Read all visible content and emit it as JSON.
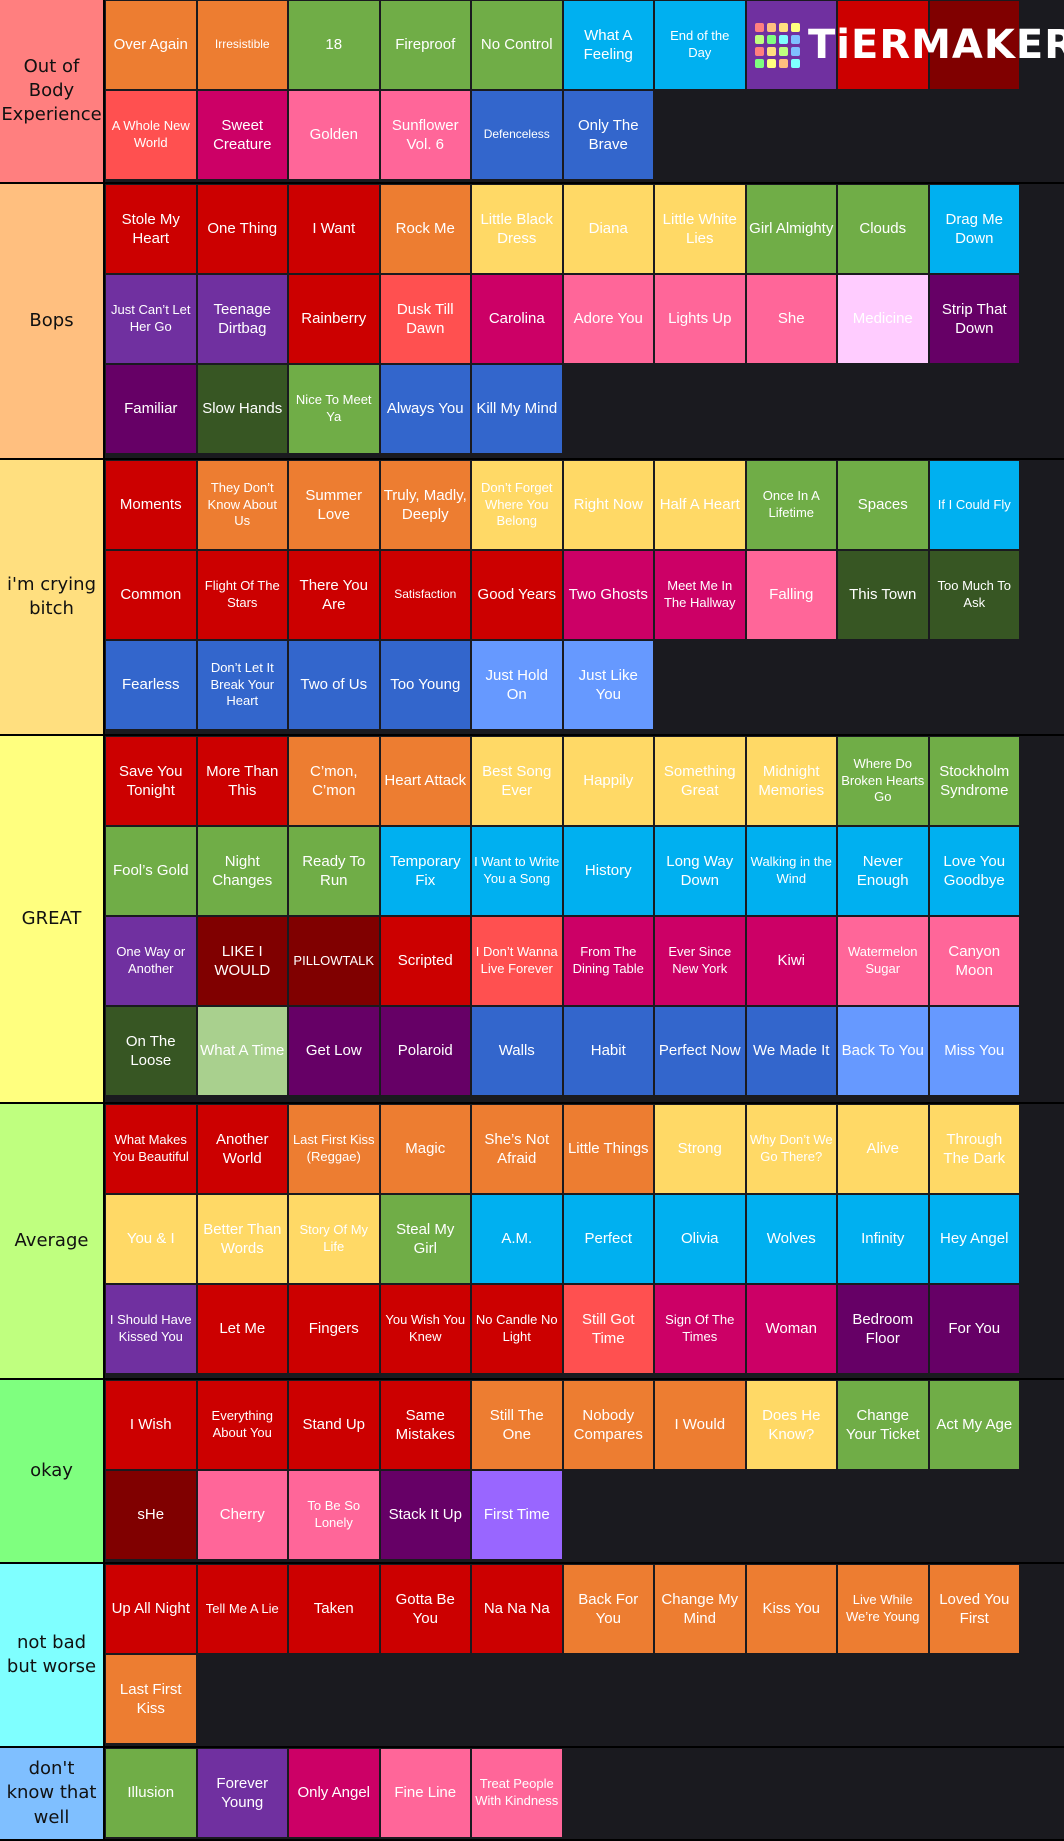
{
  "watermark": "TiERMAKER",
  "tiers": [
    {
      "label": "Out of Body Experience",
      "color": "#ff7f7f",
      "items": [
        {
          "text": "Over Again",
          "color": "#ed7d31"
        },
        {
          "text": "Irresistible",
          "color": "#ed7d31"
        },
        {
          "text": "18",
          "color": "#70ad47"
        },
        {
          "text": "Fireproof",
          "color": "#70ad47"
        },
        {
          "text": "No Control",
          "color": "#70ad47"
        },
        {
          "text": "What A Feeling",
          "color": "#00b0f0"
        },
        {
          "text": "End of the Day",
          "color": "#00b0f0"
        },
        {
          "color": "#7030a0"
        },
        {
          "color": "#cc0000"
        },
        {
          "color": "#800000"
        },
        {
          "text": "A Whole New World",
          "color": "#ff5050"
        },
        {
          "text": "Sweet Creature",
          "color": "#cc0066"
        },
        {
          "text": "Golden",
          "color": "#ff6699"
        },
        {
          "text": "Sunflower Vol. 6",
          "color": "#ff6699"
        },
        {
          "text": "Defenceless",
          "color": "#3366cc"
        },
        {
          "text": "Only The Brave",
          "color": "#3366cc"
        }
      ]
    },
    {
      "label": "Bops",
      "color": "#ffbf7f",
      "items": [
        {
          "text": "Stole My Heart",
          "color": "#cc0000"
        },
        {
          "text": "One Thing",
          "color": "#cc0000"
        },
        {
          "text": "I Want",
          "color": "#cc0000"
        },
        {
          "text": "Rock Me",
          "color": "#ed7d31"
        },
        {
          "text": "Little Black Dress",
          "color": "#ffd966"
        },
        {
          "text": "Diana",
          "color": "#ffd966"
        },
        {
          "text": "Little White Lies",
          "color": "#ffd966"
        },
        {
          "text": "Girl Almighty",
          "color": "#70ad47"
        },
        {
          "text": "Clouds",
          "color": "#70ad47"
        },
        {
          "text": "Drag Me Down",
          "color": "#00b0f0"
        },
        {
          "text": "Just Can’t Let Her Go",
          "color": "#7030a0"
        },
        {
          "text": "Teenage Dirtbag",
          "color": "#7030a0"
        },
        {
          "text": "Rainberry",
          "color": "#cc0000"
        },
        {
          "text": "Dusk Till Dawn",
          "color": "#ff5050"
        },
        {
          "text": "Carolina",
          "color": "#cc0066"
        },
        {
          "text": "Adore You",
          "color": "#ff6699"
        },
        {
          "text": "Lights Up",
          "color": "#ff6699"
        },
        {
          "text": "She",
          "color": "#ff6699"
        },
        {
          "text": "Medicine",
          "color": "#ffccff"
        },
        {
          "text": "Strip That Down",
          "color": "#660066"
        },
        {
          "text": "Familiar",
          "color": "#660066"
        },
        {
          "text": "Slow Hands",
          "color": "#375623"
        },
        {
          "text": "Nice To Meet Ya",
          "color": "#70ad47"
        },
        {
          "text": "Always You",
          "color": "#3366cc"
        },
        {
          "text": "Kill My Mind",
          "color": "#3366cc"
        }
      ]
    },
    {
      "label": "i'm crying bitch",
      "color": "#ffdf7f",
      "items": [
        {
          "text": "Moments",
          "color": "#cc0000"
        },
        {
          "text": "They Don’t Know About Us",
          "color": "#ed7d31"
        },
        {
          "text": "Summer Love",
          "color": "#ed7d31"
        },
        {
          "text": "Truly, Madly, Deeply",
          "color": "#ed7d31"
        },
        {
          "text": "Don’t Forget Where You Belong",
          "color": "#ffd966"
        },
        {
          "text": "Right Now",
          "color": "#ffd966"
        },
        {
          "text": "Half A Heart",
          "color": "#ffd966"
        },
        {
          "text": "Once In A Lifetime",
          "color": "#70ad47"
        },
        {
          "text": "Spaces",
          "color": "#70ad47"
        },
        {
          "text": "If I Could Fly",
          "color": "#00b0f0"
        },
        {
          "text": "Common",
          "color": "#cc0000"
        },
        {
          "text": "Flight Of The Stars",
          "color": "#cc0000"
        },
        {
          "text": "There You Are",
          "color": "#cc0000"
        },
        {
          "text": "Satisfaction",
          "color": "#cc0000"
        },
        {
          "text": "Good Years",
          "color": "#cc0000"
        },
        {
          "text": "Two Ghosts",
          "color": "#cc0066"
        },
        {
          "text": "Meet Me In The Hallway",
          "color": "#cc0066"
        },
        {
          "text": "Falling",
          "color": "#ff6699"
        },
        {
          "text": "This Town",
          "color": "#375623"
        },
        {
          "text": "Too Much To Ask",
          "color": "#375623"
        },
        {
          "text": "Fearless",
          "color": "#3366cc"
        },
        {
          "text": "Don’t Let It Break Your Heart",
          "color": "#3366cc"
        },
        {
          "text": "Two of Us",
          "color": "#3366cc"
        },
        {
          "text": "Too Young",
          "color": "#3366cc"
        },
        {
          "text": "Just Hold On",
          "color": "#6699ff"
        },
        {
          "text": "Just Like You",
          "color": "#6699ff"
        }
      ]
    },
    {
      "label": "GREAT",
      "color": "#ffff7f",
      "items": [
        {
          "text": "Save You Tonight",
          "color": "#cc0000"
        },
        {
          "text": "More Than This",
          "color": "#cc0000"
        },
        {
          "text": "C’mon, C’mon",
          "color": "#ed7d31"
        },
        {
          "text": "Heart Attack",
          "color": "#ed7d31"
        },
        {
          "text": "Best Song Ever",
          "color": "#ffd966"
        },
        {
          "text": "Happily",
          "color": "#ffd966"
        },
        {
          "text": "Something Great",
          "color": "#ffd966"
        },
        {
          "text": "Midnight Memories",
          "color": "#ffd966"
        },
        {
          "text": "Where Do Broken Hearts Go",
          "color": "#70ad47"
        },
        {
          "text": "Stockholm Syndrome",
          "color": "#70ad47"
        },
        {
          "text": "Fool’s Gold",
          "color": "#70ad47"
        },
        {
          "text": "Night Changes",
          "color": "#70ad47"
        },
        {
          "text": "Ready To Run",
          "color": "#70ad47"
        },
        {
          "text": "Temporary Fix",
          "color": "#00b0f0"
        },
        {
          "text": "I Want to Write You a Song",
          "color": "#00b0f0"
        },
        {
          "text": "History",
          "color": "#00b0f0"
        },
        {
          "text": "Long Way Down",
          "color": "#00b0f0"
        },
        {
          "text": "Walking in the Wind",
          "color": "#00b0f0"
        },
        {
          "text": "Never Enough",
          "color": "#00b0f0"
        },
        {
          "text": "Love You Goodbye",
          "color": "#00b0f0"
        },
        {
          "text": "One Way or Another",
          "color": "#7030a0"
        },
        {
          "text": "LIKE I WOULD",
          "color": "#800000"
        },
        {
          "text": "PILLOWTALK",
          "color": "#800000"
        },
        {
          "text": "Scripted",
          "color": "#cc0000"
        },
        {
          "text": "I Don’t Wanna Live Forever",
          "color": "#ff5050"
        },
        {
          "text": "From The Dining Table",
          "color": "#cc0066"
        },
        {
          "text": "Ever Since New York",
          "color": "#cc0066"
        },
        {
          "text": "Kiwi",
          "color": "#cc0066"
        },
        {
          "text": "Watermelon Sugar",
          "color": "#ff6699"
        },
        {
          "text": "Canyon Moon",
          "color": "#ff6699"
        },
        {
          "text": "On The Loose",
          "color": "#375623"
        },
        {
          "text": "What A Time",
          "color": "#a9d08e"
        },
        {
          "text": "Get Low",
          "color": "#660066"
        },
        {
          "text": "Polaroid",
          "color": "#660066"
        },
        {
          "text": "Walls",
          "color": "#3366cc"
        },
        {
          "text": "Habit",
          "color": "#3366cc"
        },
        {
          "text": "Perfect Now",
          "color": "#3366cc"
        },
        {
          "text": "We Made It",
          "color": "#3366cc"
        },
        {
          "text": "Back To You",
          "color": "#6699ff"
        },
        {
          "text": "Miss You",
          "color": "#6699ff"
        }
      ]
    },
    {
      "label": "Average",
      "color": "#bfff7f",
      "items": [
        {
          "text": "What Makes You Beautiful",
          "color": "#cc0000"
        },
        {
          "text": "Another World",
          "color": "#cc0000"
        },
        {
          "text": "Last First Kiss (Reggae)",
          "color": "#ed7d31"
        },
        {
          "text": "Magic",
          "color": "#ed7d31"
        },
        {
          "text": "She’s Not Afraid",
          "color": "#ed7d31"
        },
        {
          "text": "Little Things",
          "color": "#ed7d31"
        },
        {
          "text": "Strong",
          "color": "#ffd966"
        },
        {
          "text": "Why Don’t We Go There?",
          "color": "#ffd966"
        },
        {
          "text": "Alive",
          "color": "#ffd966"
        },
        {
          "text": "Through The Dark",
          "color": "#ffd966"
        },
        {
          "text": "You & I",
          "color": "#ffd966"
        },
        {
          "text": "Better Than Words",
          "color": "#ffd966"
        },
        {
          "text": "Story Of My Life",
          "color": "#ffd966"
        },
        {
          "text": "Steal My Girl",
          "color": "#70ad47"
        },
        {
          "text": "A.M.",
          "color": "#00b0f0"
        },
        {
          "text": "Perfect",
          "color": "#00b0f0"
        },
        {
          "text": "Olivia",
          "color": "#00b0f0"
        },
        {
          "text": "Wolves",
          "color": "#00b0f0"
        },
        {
          "text": "Infinity",
          "color": "#00b0f0"
        },
        {
          "text": "Hey Angel",
          "color": "#00b0f0"
        },
        {
          "text": "I Should Have Kissed You",
          "color": "#7030a0"
        },
        {
          "text": "Let Me",
          "color": "#cc0000"
        },
        {
          "text": "Fingers",
          "color": "#cc0000"
        },
        {
          "text": "You Wish You Knew",
          "color": "#cc0000"
        },
        {
          "text": "No Candle No Light",
          "color": "#cc0000"
        },
        {
          "text": "Still Got Time",
          "color": "#ff5050"
        },
        {
          "text": "Sign Of The Times",
          "color": "#cc0066"
        },
        {
          "text": "Woman",
          "color": "#cc0066"
        },
        {
          "text": "Bedroom Floor",
          "color": "#660066"
        },
        {
          "text": "For You",
          "color": "#660066"
        }
      ]
    },
    {
      "label": "okay",
      "color": "#7fff7f",
      "items": [
        {
          "text": "I Wish",
          "color": "#cc0000"
        },
        {
          "text": "Everything About You",
          "color": "#cc0000"
        },
        {
          "text": "Stand Up",
          "color": "#cc0000"
        },
        {
          "text": "Same Mistakes",
          "color": "#cc0000"
        },
        {
          "text": "Still The One",
          "color": "#ed7d31"
        },
        {
          "text": "Nobody Compares",
          "color": "#ed7d31"
        },
        {
          "text": "I Would",
          "color": "#ed7d31"
        },
        {
          "text": "Does He Know?",
          "color": "#ffd966"
        },
        {
          "text": "Change Your Ticket",
          "color": "#70ad47"
        },
        {
          "text": "Act My Age",
          "color": "#70ad47"
        },
        {
          "text": "sHe",
          "color": "#800000"
        },
        {
          "text": "Cherry",
          "color": "#ff6699"
        },
        {
          "text": "To Be So Lonely",
          "color": "#ff6699"
        },
        {
          "text": "Stack It Up",
          "color": "#660066"
        },
        {
          "text": "First Time",
          "color": "#9966ff"
        }
      ]
    },
    {
      "label": "not bad but worse",
      "color": "#7fffff",
      "items": [
        {
          "text": "Up All Night",
          "color": "#cc0000"
        },
        {
          "text": "Tell Me A Lie",
          "color": "#cc0000"
        },
        {
          "text": "Taken",
          "color": "#cc0000"
        },
        {
          "text": "Gotta Be You",
          "color": "#cc0000"
        },
        {
          "text": "Na Na Na",
          "color": "#cc0000"
        },
        {
          "text": "Back For You",
          "color": "#ed7d31"
        },
        {
          "text": "Change My Mind",
          "color": "#ed7d31"
        },
        {
          "text": "Kiss You",
          "color": "#ed7d31"
        },
        {
          "text": "Live While We’re Young",
          "color": "#ed7d31"
        },
        {
          "text": "Loved You First",
          "color": "#ed7d31"
        },
        {
          "text": "Last First Kiss",
          "color": "#ed7d31"
        }
      ]
    },
    {
      "label": "don't know that well",
      "color": "#7fbfff",
      "items": [
        {
          "text": "Illusion",
          "color": "#70ad47"
        },
        {
          "text": "Forever Young",
          "color": "#7030a0"
        },
        {
          "text": "Only Angel",
          "color": "#cc0066"
        },
        {
          "text": "Fine Line",
          "color": "#ff6699"
        },
        {
          "text": "Treat People With Kindness",
          "color": "#ff6699"
        }
      ]
    }
  ]
}
